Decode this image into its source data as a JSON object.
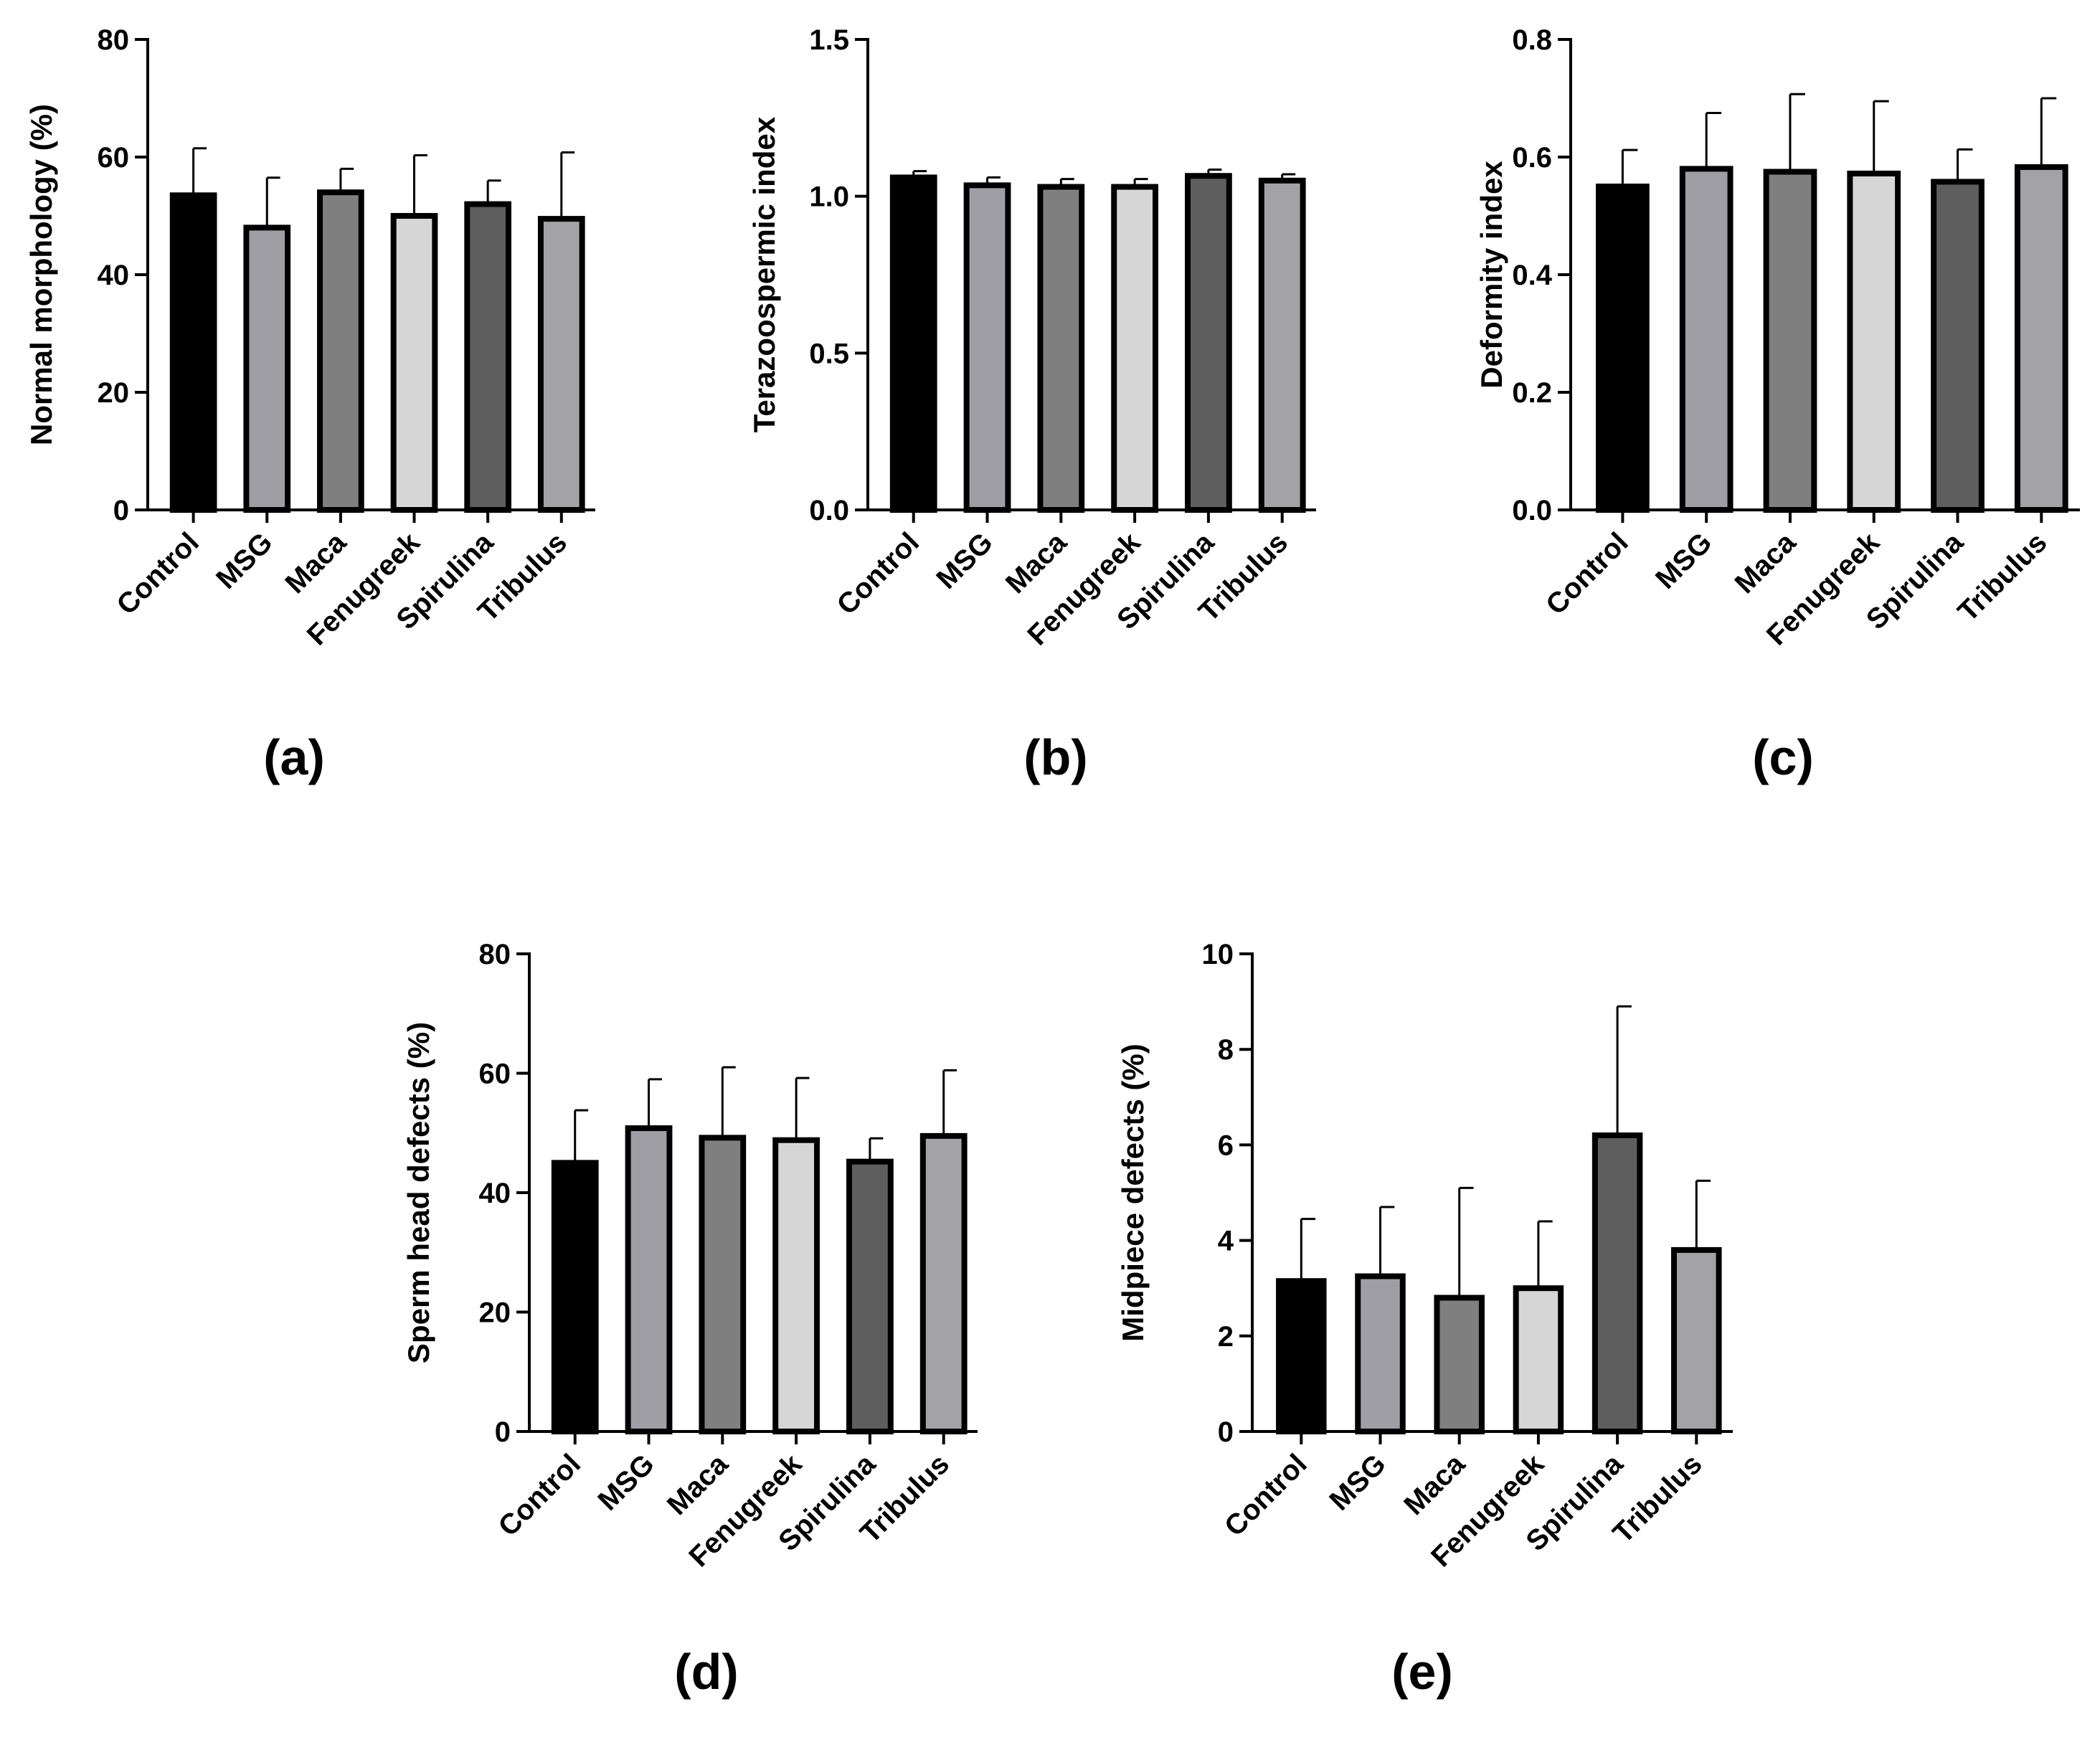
{
  "figure": {
    "colors": {
      "Control": "#000000",
      "MSG": "#9e9ea4",
      "Maca": "#7f7f7f",
      "Fenugreek": "#d6d6d6",
      "Spirulina": "#5e5e5e",
      "Tribulus": "#a3a3a6"
    }
  },
  "chart_data": [
    {
      "type": "bar",
      "panel_label": "(a)",
      "title": "",
      "xlabel": "",
      "ylabel": "Normal morphology (%)",
      "categories": [
        "Control",
        "MSG",
        "Maca",
        "Fenugreek",
        "Spirulina",
        "Tribulus"
      ],
      "values": [
        53.5,
        48,
        54,
        50,
        52,
        49.5
      ],
      "errors": [
        8,
        8.5,
        4,
        10.3,
        4,
        11.3
      ],
      "ylim": [
        0,
        80
      ],
      "yticks": [
        0,
        20,
        40,
        60,
        80
      ],
      "ytick_labels": [
        "0",
        "20",
        "40",
        "60",
        "80"
      ],
      "grid": false
    },
    {
      "type": "bar",
      "panel_label": "(b)",
      "title": "",
      "xlabel": "",
      "ylabel": "Terazoospermic index",
      "categories": [
        "Control",
        "MSG",
        "Maca",
        "Fenugreek",
        "Spirulina",
        "Tribulus"
      ],
      "values": [
        1.06,
        1.035,
        1.03,
        1.03,
        1.065,
        1.05
      ],
      "errors": [
        0.02,
        0.025,
        0.025,
        0.025,
        0.02,
        0.02
      ],
      "ylim": [
        0,
        1.5
      ],
      "yticks": [
        0,
        0.5,
        1,
        1.5
      ],
      "ytick_labels": [
        "0.0",
        "0.5",
        "1.0",
        "1.5"
      ],
      "grid": false
    },
    {
      "type": "bar",
      "panel_label": "(c)",
      "title": "",
      "xlabel": "",
      "ylabel": "Deformity index",
      "categories": [
        "Control",
        "MSG",
        "Maca",
        "Fenugreek",
        "Spirulina",
        "Tribulus"
      ],
      "values": [
        0.55,
        0.58,
        0.575,
        0.572,
        0.558,
        0.583
      ],
      "errors": [
        0.062,
        0.095,
        0.132,
        0.123,
        0.055,
        0.117
      ],
      "ylim": [
        0,
        0.8
      ],
      "yticks": [
        0,
        0.2,
        0.4,
        0.6,
        0.8
      ],
      "ytick_labels": [
        "0.0",
        "0.2",
        "0.4",
        "0.6",
        "0.8"
      ],
      "grid": false
    },
    {
      "type": "bar",
      "panel_label": "(d)",
      "title": "",
      "xlabel": "",
      "ylabel": "Sperm head defects (%)",
      "categories": [
        "Control",
        "MSG",
        "Maca",
        "Fenugreek",
        "Spirulina",
        "Tribulus"
      ],
      "values": [
        45,
        50.8,
        49.2,
        48.8,
        45.2,
        49.5
      ],
      "errors": [
        8.8,
        8.2,
        11.8,
        10.4,
        3.9,
        11
      ],
      "ylim": [
        0,
        80
      ],
      "yticks": [
        0,
        20,
        40,
        60,
        80
      ],
      "ytick_labels": [
        "0",
        "20",
        "40",
        "60",
        "80"
      ],
      "grid": false
    },
    {
      "type": "bar",
      "panel_label": "(e)",
      "title": "",
      "xlabel": "",
      "ylabel": "Midpiece defects (%)",
      "categories": [
        "Control",
        "MSG",
        "Maca",
        "Fenugreek",
        "Spirulina",
        "Tribulus"
      ],
      "values": [
        3.15,
        3.25,
        2.8,
        3,
        6.2,
        3.8
      ],
      "errors": [
        1.3,
        1.45,
        2.3,
        1.4,
        2.7,
        1.45
      ],
      "ylim": [
        0,
        10
      ],
      "yticks": [
        0,
        2,
        4,
        6,
        8,
        10
      ],
      "ytick_labels": [
        "0",
        "2",
        "4",
        "6",
        "8",
        "10"
      ],
      "grid": false
    }
  ]
}
